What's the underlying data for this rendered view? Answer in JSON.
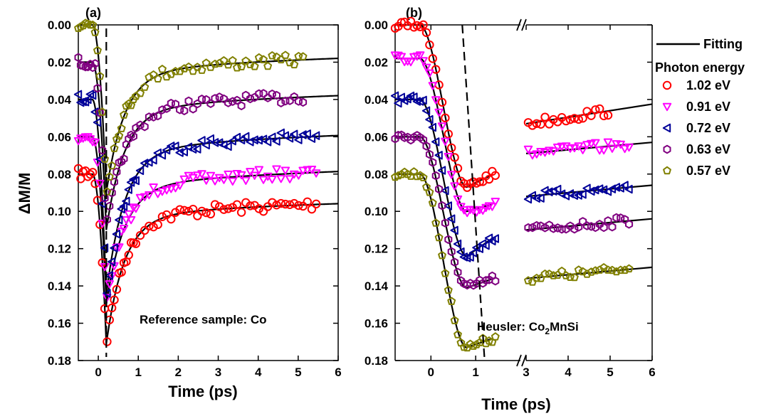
{
  "figure": {
    "ylabel": "ΔM/M",
    "xlabel": "Time (ps)",
    "legend_fitting": "Fitting",
    "legend_title": "Photon energy",
    "series": [
      {
        "name": "1.02 eV",
        "color": "#ff0000",
        "marker": "circle"
      },
      {
        "name": "0.91 eV",
        "color": "#ff00ff",
        "marker": "triangle-down"
      },
      {
        "name": "0.72 eV",
        "color": "#000099",
        "marker": "triangle-left"
      },
      {
        "name": "0.63 eV",
        "color": "#800080",
        "marker": "hexagon"
      },
      {
        "name": "0.57 eV",
        "color": "#808000",
        "marker": "pentagon"
      }
    ],
    "fit_color": "#000000"
  },
  "chart_data": [
    {
      "type": "scatter",
      "panel_label": "(a)",
      "annotation": "Reference sample: Co",
      "xlabel": "Time (ps)",
      "ylabel": "ΔM/M",
      "xlim": [
        -0.5,
        6
      ],
      "ylim": [
        0.18,
        0.0
      ],
      "y_inverted": true,
      "xticks": [
        "0",
        "1",
        "2",
        "3",
        "4",
        "5",
        "6"
      ],
      "yticks": [
        "0.00",
        "0.02",
        "0.04",
        "0.06",
        "0.08",
        "0.10",
        "0.12",
        "0.14",
        "0.16",
        "0.18"
      ],
      "dashed_line_x": 0.2,
      "series": [
        {
          "name": "1.02 eV",
          "baseline": 0.08,
          "peak": 0.171,
          "peak_t": 0.2,
          "plateau": 0.103,
          "x_end": 5.5
        },
        {
          "name": "0.91 eV",
          "baseline": 0.06,
          "peak": 0.15,
          "peak_t": 0.2,
          "plateau": 0.087,
          "x_end": 5.5
        },
        {
          "name": "0.72 eV",
          "baseline": 0.04,
          "peak": 0.145,
          "peak_t": 0.2,
          "plateau": 0.068,
          "x_end": 5.5
        },
        {
          "name": "0.63 eV",
          "baseline": 0.02,
          "peak": 0.11,
          "peak_t": 0.2,
          "plateau": 0.046,
          "x_end": 5.2
        },
        {
          "name": "0.57 eV",
          "baseline": 0.0,
          "peak": 0.09,
          "peak_t": 0.2,
          "plateau": 0.026,
          "x_end": 5.2
        }
      ]
    },
    {
      "type": "scatter",
      "panel_label": "(b)",
      "annotation": "Heusler: Co",
      "annotation_sub": "2",
      "annotation_tail": "MnSi",
      "xlabel": "Time (ps)",
      "ylabel": "ΔM/M",
      "xlim_left": [
        -0.8,
        2.0
      ],
      "xlim_right": [
        3.0,
        6.0
      ],
      "axis_break": true,
      "ylim": [
        0.18,
        0.0
      ],
      "y_inverted": true,
      "xticks": [
        "0",
        "1",
        "3",
        "4",
        "5",
        "6"
      ],
      "yticks": [
        "0.00",
        "0.02",
        "0.04",
        "0.06",
        "0.08",
        "0.10",
        "0.12",
        "0.14",
        "0.16",
        "0.18"
      ],
      "dashed_line_from": [
        0.7,
        0.0
      ],
      "dashed_line_to": [
        1.2,
        0.18
      ],
      "series": [
        {
          "name": "1.02 eV",
          "baseline": 0.0,
          "min_value": 0.087,
          "min_t": 0.8,
          "end_left": 0.08,
          "right_start": 0.053,
          "right_end": 0.046,
          "x_end": 5.0
        },
        {
          "name": "0.91 eV",
          "baseline": 0.018,
          "min_value": 0.1,
          "min_t": 0.8,
          "end_left": 0.096,
          "right_start": 0.069,
          "right_end": 0.064,
          "x_end": 5.5
        },
        {
          "name": "0.72 eV",
          "baseline": 0.04,
          "min_value": 0.124,
          "min_t": 0.8,
          "end_left": 0.114,
          "right_start": 0.092,
          "right_end": 0.087,
          "x_end": 5.5
        },
        {
          "name": "0.63 eV",
          "baseline": 0.06,
          "min_value": 0.141,
          "min_t": 0.8,
          "end_left": 0.136,
          "right_start": 0.11,
          "right_end": 0.105,
          "x_end": 5.5
        },
        {
          "name": "0.57 eV",
          "baseline": 0.08,
          "min_value": 0.173,
          "min_t": 0.8,
          "end_left": 0.168,
          "right_start": 0.136,
          "right_end": 0.131,
          "x_end": 5.5
        }
      ]
    }
  ]
}
